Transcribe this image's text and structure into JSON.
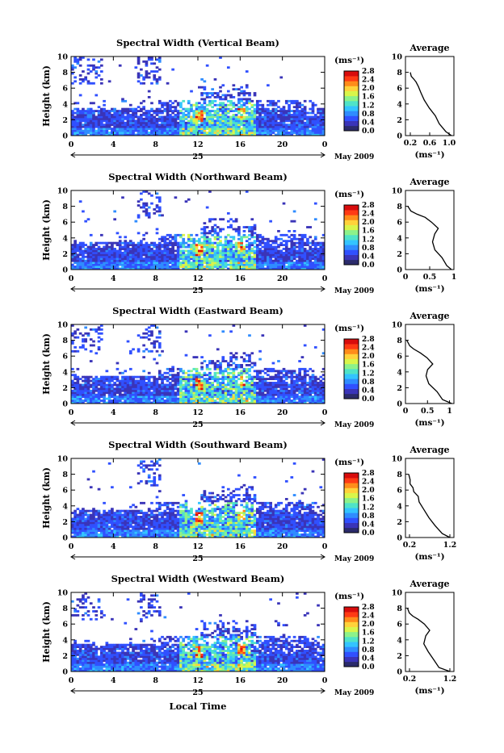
{
  "colors": {
    "colormap": [
      "#2b2b6b",
      "#3a34b8",
      "#3050ff",
      "#2f8cff",
      "#33c4ff",
      "#4fe3c8",
      "#8cf28a",
      "#d9f54a",
      "#ffd23a",
      "#ff8c1a",
      "#ff3a14",
      "#d80c0c"
    ],
    "axis": "#000000",
    "background": "#ffffff"
  },
  "shared": {
    "x_label": "Local Time",
    "date_label": "May 2009",
    "day_label": "25",
    "y_label": "Height (km)",
    "unit_label": "(ms⁻¹)",
    "avg_title": "Average",
    "x_ticks": [
      "0",
      "4",
      "8",
      "12",
      "16",
      "20",
      "0"
    ],
    "y_ticks": [
      "0",
      "2",
      "4",
      "6",
      "8",
      "10"
    ],
    "colorbar_ticks": [
      "0.0",
      "0.4",
      "0.8",
      "1.2",
      "1.6",
      "2.0",
      "2.4",
      "2.8"
    ]
  },
  "chart_data": [
    {
      "type": "heatmap",
      "title": "Spectral Width (Vertical Beam)",
      "xlim": [
        0,
        24
      ],
      "ylim": [
        0,
        10
      ],
      "clim": [
        0,
        2.8
      ],
      "avg_profile": {
        "xlabel": "(ms⁻¹)",
        "xlim": [
          0.1,
          1.1
        ],
        "xticks": [
          "0.2",
          "0.6",
          "1.0"
        ],
        "x": [
          1.05,
          0.95,
          0.8,
          0.7,
          0.6,
          0.5,
          0.42,
          0.35,
          0.3,
          0.25,
          0.22,
          0.2
        ],
        "y": [
          0,
          0.5,
          1.5,
          2.5,
          3.5,
          4.5,
          5.5,
          6.2,
          6.8,
          7.2,
          7.5,
          8
        ]
      }
    },
    {
      "type": "heatmap",
      "title": "Spectral Width (Northward Beam)",
      "xlim": [
        0,
        24
      ],
      "ylim": [
        0,
        10
      ],
      "clim": [
        0,
        2.8
      ],
      "avg_profile": {
        "xlabel": "(ms⁻¹)",
        "xlim": [
          0,
          1
        ],
        "xticks": [
          "0",
          "0.5",
          "1"
        ],
        "x": [
          0.95,
          0.85,
          0.75,
          0.62,
          0.55,
          0.62,
          0.68,
          0.55,
          0.4,
          0.25,
          0.12,
          0.05
        ],
        "y": [
          0,
          0.5,
          1.5,
          2.5,
          3.5,
          4.5,
          5.2,
          6,
          6.6,
          7,
          7.4,
          8
        ]
      }
    },
    {
      "type": "heatmap",
      "title": "Spectral Width (Eastward Beam)",
      "xlim": [
        0,
        24
      ],
      "ylim": [
        0,
        10
      ],
      "clim": [
        0,
        2.8
      ],
      "avg_profile": {
        "xlabel": "(ms⁻¹)",
        "xlim": [
          0,
          1.1
        ],
        "xticks": [
          "0",
          "0.5",
          "1"
        ],
        "x": [
          1.05,
          0.85,
          0.7,
          0.55,
          0.45,
          0.5,
          0.6,
          0.5,
          0.35,
          0.2,
          0.1,
          0.03
        ],
        "y": [
          0,
          0.5,
          1.5,
          2.5,
          3.5,
          4.3,
          5,
          5.8,
          6.4,
          6.9,
          7.3,
          8
        ]
      }
    },
    {
      "type": "heatmap",
      "title": "Spectral Width (Southward Beam)",
      "xlim": [
        0,
        24
      ],
      "ylim": [
        0,
        10
      ],
      "clim": [
        0,
        2.8
      ],
      "avg_profile": {
        "xlabel": "(ms⁻¹)",
        "xlim": [
          0.1,
          1.3
        ],
        "xticks": [
          "0.2",
          "1.2"
        ],
        "x": [
          1.2,
          1.0,
          0.85,
          0.7,
          0.55,
          0.45,
          0.4,
          0.3,
          0.28,
          0.22,
          0.2,
          0.18
        ],
        "y": [
          0,
          0.5,
          1.5,
          2.5,
          3.5,
          4.5,
          5.2,
          5.8,
          6.3,
          6.8,
          7.3,
          8
        ]
      }
    },
    {
      "type": "heatmap",
      "title": "Spectral Width (Westward Beam)",
      "xlim": [
        0,
        24
      ],
      "ylim": [
        0,
        10
      ],
      "clim": [
        0,
        2.8
      ],
      "avg_profile": {
        "xlabel": "(ms⁻¹)",
        "xlim": [
          0.1,
          1.3
        ],
        "xticks": [
          "0.2",
          "1.2"
        ],
        "x": [
          1.2,
          0.95,
          0.8,
          0.65,
          0.55,
          0.62,
          0.7,
          0.55,
          0.4,
          0.28,
          0.2,
          0.15
        ],
        "y": [
          0,
          0.5,
          1.5,
          2.5,
          3.5,
          4.5,
          5.2,
          6,
          6.6,
          7,
          7.4,
          8
        ]
      }
    }
  ]
}
